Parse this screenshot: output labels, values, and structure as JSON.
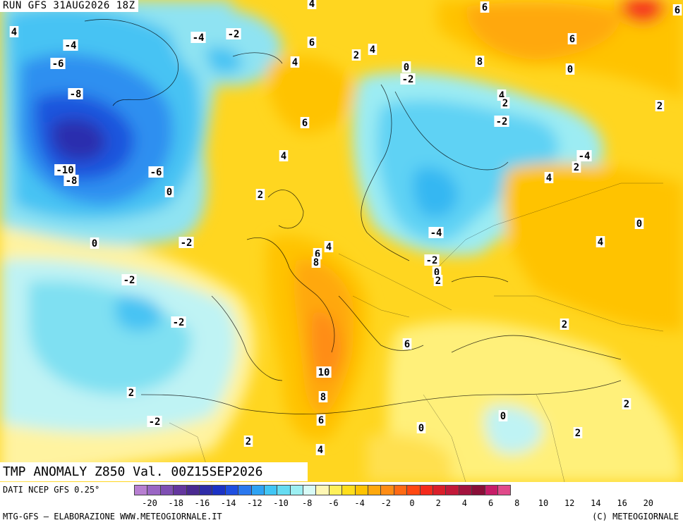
{
  "header": {
    "run_label": "RUN GFS 31AUG2026 18Z"
  },
  "map": {
    "field_title": "TMP ANOMALY Z850 Val. 00Z15SEP2026",
    "contour_labels": [
      "4",
      "-4",
      "-2",
      "4",
      "6",
      "6",
      "2",
      "4",
      "6",
      "-4",
      "-6",
      "-8",
      "4",
      "6",
      "0",
      "-2",
      "8",
      "0",
      "6",
      "4",
      "2",
      "-2",
      "4",
      "-10",
      "-8",
      "-6",
      "0",
      "-4",
      "2",
      "4",
      "2",
      "0",
      "4",
      "0",
      "-2",
      "-2",
      "6",
      "8",
      "4",
      "-4",
      "-2",
      "0",
      "2",
      "-2",
      "2",
      "6",
      "10",
      "8",
      "6",
      "4",
      "2",
      "0",
      "2",
      "2",
      "0",
      "2",
      "2",
      "-2"
    ]
  },
  "legend": {
    "source": "DATI NCEP GFS 0.25°",
    "tick_labels": [
      "-20",
      "-18",
      "-16",
      "-14",
      "-12",
      "-10",
      "-8",
      "-6",
      "-4",
      "-2",
      "0",
      "2",
      "4",
      "6",
      "8",
      "10",
      "12",
      "14",
      "16",
      "20"
    ],
    "colors": [
      "#b77fd1",
      "#9a66c4",
      "#7f4fb3",
      "#64379e",
      "#4a2a90",
      "#2f2da8",
      "#1c33c5",
      "#1f4fe0",
      "#2a78ee",
      "#2ea3f4",
      "#41c6f5",
      "#66dcf2",
      "#9ceff2",
      "#d8fbf6",
      "#fff7b4",
      "#fff05a",
      "#ffde1c",
      "#ffc300",
      "#ffa80c",
      "#ff8c14",
      "#ff6a14",
      "#ff4812",
      "#f42a1c",
      "#da1f2a",
      "#c21a3a",
      "#a3133e",
      "#8a0f38",
      "#c71d68",
      "#e04a8a"
    ]
  },
  "footer": {
    "credit_left": "MTG-GFS — ELABORAZIONE WWW.METEOGIORNALE.IT",
    "credit_right": "(C) METEOGIORNALE"
  }
}
